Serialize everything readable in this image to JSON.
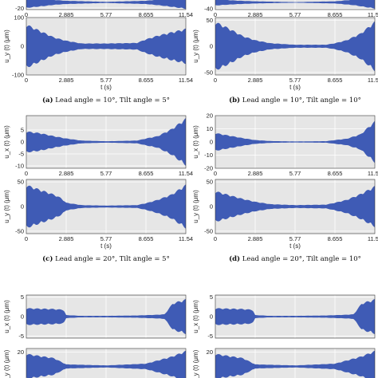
{
  "chart_data": [
    {
      "id": "a-ux",
      "type": "area",
      "ylabel": "u_x (t) (μm)",
      "x_ticks": [
        "0",
        "2.885",
        "5.77",
        "8.655",
        "11.54"
      ],
      "yticks": [
        "-20"
      ],
      "ylim": [
        -25,
        25
      ],
      "xlim": [
        0,
        11.54
      ],
      "envelope": {
        "x": [
          0,
          1.5,
          2.0,
          2.885,
          5.77,
          8.655,
          9.5,
          10.5,
          11.54
        ],
        "amplitude": [
          20,
          12,
          9,
          6,
          2,
          6,
          10,
          16,
          23
        ]
      }
    },
    {
      "id": "b-ux",
      "type": "area",
      "ylabel": "u_x (t) (μm)",
      "x_ticks": [
        "0",
        "2.885",
        "5.77",
        "8.655",
        "11.54"
      ],
      "yticks": [
        "-40"
      ],
      "ylim": [
        -45,
        45
      ],
      "xlim": [
        0,
        11.54
      ],
      "envelope": {
        "x": [
          0,
          1.5,
          2.885,
          5.77,
          8.655,
          10.0,
          11.54
        ],
        "amplitude": [
          20,
          12,
          7,
          2,
          7,
          18,
          40
        ]
      }
    },
    {
      "id": "a-uy",
      "type": "area",
      "xlabel": "t (s)",
      "ylabel": "u_y (t) (μm)",
      "x_ticks": [
        "0",
        "2.885",
        "5.77",
        "8.655",
        "11.54"
      ],
      "yticks": [
        "-100",
        "0",
        "100"
      ],
      "ylim": [
        -100,
        100
      ],
      "xlim": [
        0,
        11.54
      ],
      "envelope": {
        "x": [
          0,
          1.0,
          2.0,
          2.885,
          4.0,
          5.77,
          8.0,
          8.655,
          9.5,
          10.5,
          11.54
        ],
        "amplitude": [
          78,
          55,
          32,
          20,
          10,
          10,
          12,
          25,
          38,
          50,
          62
        ]
      }
    },
    {
      "id": "b-uy",
      "type": "area",
      "xlabel": "t (s)",
      "ylabel": "u_y (t) (μm)",
      "x_ticks": [
        "0",
        "2.885",
        "5.77",
        "8.655",
        "11.54"
      ],
      "yticks": [
        "-50",
        "0",
        "50"
      ],
      "ylim": [
        -55,
        55
      ],
      "xlim": [
        0,
        11.54
      ],
      "envelope": {
        "x": [
          0,
          1.0,
          2.0,
          2.885,
          4.0,
          5.77,
          8.0,
          8.655,
          9.5,
          10.5,
          11.54
        ],
        "amplitude": [
          48,
          35,
          20,
          12,
          6,
          3,
          3,
          6,
          12,
          25,
          48
        ]
      }
    },
    {
      "id": "c-ux",
      "type": "area",
      "ylabel": "u_x (t) (μm)",
      "x_ticks": [
        "0",
        "2.885",
        "5.77",
        "8.655",
        "11.54"
      ],
      "yticks": [
        "-10",
        "-5",
        "0",
        "5"
      ],
      "ylim": [
        -11,
        11
      ],
      "xlim": [
        0,
        11.54
      ],
      "envelope": {
        "x": [
          0,
          1.0,
          2.0,
          2.885,
          4.0,
          5.77,
          8.0,
          8.655,
          9.5,
          10.5,
          11.54
        ],
        "amplitude": [
          4.5,
          3.8,
          2.5,
          1.5,
          0.6,
          0.3,
          0.6,
          1.5,
          2.5,
          5.5,
          10
        ]
      }
    },
    {
      "id": "d-ux",
      "type": "area",
      "ylabel": "u_x (t) (μm)",
      "x_ticks": [
        "0",
        "2.885",
        "5.77",
        "8.655",
        "11.54"
      ],
      "yticks": [
        "-20",
        "-10",
        "0",
        "10",
        "20"
      ],
      "ylim": [
        -20,
        20
      ],
      "xlim": [
        0,
        11.54
      ],
      "envelope": {
        "x": [
          0,
          1.0,
          2.0,
          2.885,
          4.0,
          5.77,
          8.0,
          8.655,
          9.5,
          10.5,
          11.54
        ],
        "amplitude": [
          7,
          5,
          3,
          1.5,
          0.7,
          0.4,
          0.6,
          1.5,
          2.5,
          6,
          16
        ]
      }
    },
    {
      "id": "c-uy",
      "type": "area",
      "xlabel": "t (s)",
      "ylabel": "u_y (t) (μm)",
      "x_ticks": [
        "0",
        "2.885",
        "5.77",
        "8.655",
        "11.54"
      ],
      "yticks": [
        "-50",
        "0",
        "50"
      ],
      "ylim": [
        -55,
        55
      ],
      "xlim": [
        0,
        11.54
      ],
      "envelope": {
        "x": [
          0,
          1.0,
          2.0,
          2.5,
          2.885,
          4.0,
          5.77,
          8.0,
          8.655,
          9.5,
          10.5,
          11.54
        ],
        "amplitude": [
          45,
          35,
          25,
          18,
          8,
          3,
          2,
          3,
          7,
          14,
          25,
          45
        ]
      }
    },
    {
      "id": "d-uy",
      "type": "area",
      "xlabel": "t (s)",
      "ylabel": "u_y (t) (μm)",
      "x_ticks": [
        "0",
        "2.885",
        "5.77",
        "8.655",
        "11.54"
      ],
      "yticks": [
        "-50",
        "0",
        "50"
      ],
      "ylim": [
        -55,
        55
      ],
      "xlim": [
        0,
        11.54
      ],
      "envelope": {
        "x": [
          0,
          1.0,
          2.0,
          2.885,
          4.0,
          5.77,
          8.0,
          8.655,
          9.5,
          10.5,
          11.54
        ],
        "amplitude": [
          32,
          24,
          16,
          10,
          5,
          3,
          4,
          8,
          14,
          26,
          42
        ]
      }
    },
    {
      "id": "e-ux",
      "type": "area",
      "ylabel": "u_x (t) (μm)",
      "x_ticks": [],
      "yticks": [
        "-5",
        "0",
        "5"
      ],
      "ylim": [
        -5.5,
        5.5
      ],
      "xlim": [
        0,
        11.54
      ],
      "envelope": {
        "x": [
          0,
          2.0,
          2.7,
          2.885,
          4.0,
          5.77,
          8.0,
          9.5,
          10.0,
          10.6,
          11.54
        ],
        "amplitude": [
          2.2,
          2.0,
          1.8,
          0.4,
          0.2,
          0.2,
          0.3,
          0.5,
          0.6,
          3.5,
          4.5
        ]
      }
    },
    {
      "id": "f-ux",
      "type": "area",
      "ylabel": "u_x (t) (μm)",
      "x_ticks": [],
      "yticks": [
        "-5",
        "0",
        "5"
      ],
      "ylim": [
        -5.5,
        5.5
      ],
      "xlim": [
        0,
        11.54
      ],
      "envelope": {
        "x": [
          0,
          2.0,
          2.7,
          2.885,
          4.0,
          5.77,
          8.0,
          9.5,
          10.0,
          10.6,
          11.54
        ],
        "amplitude": [
          2.2,
          2.0,
          1.8,
          0.4,
          0.2,
          0.2,
          0.3,
          0.5,
          0.6,
          3.5,
          4.5
        ]
      }
    },
    {
      "id": "e-uy",
      "type": "area",
      "ylabel": "u_y (t) (μm)",
      "x_ticks": [],
      "yticks": [
        "20"
      ],
      "ylim": [
        -25,
        25
      ],
      "xlim": [
        0,
        11.54
      ],
      "envelope": {
        "x": [
          0,
          2.0,
          2.885,
          5.77,
          8.655,
          10.5,
          11.54
        ],
        "amplitude": [
          18,
          12,
          3,
          1.5,
          4,
          14,
          22
        ]
      }
    },
    {
      "id": "f-uy",
      "type": "area",
      "ylabel": "u_y (t) (μm)",
      "x_ticks": [],
      "yticks": [
        "20"
      ],
      "ylim": [
        -25,
        25
      ],
      "xlim": [
        0,
        11.54
      ],
      "envelope": {
        "x": [
          0,
          2.0,
          2.885,
          5.77,
          8.655,
          10.5,
          11.54
        ],
        "amplitude": [
          18,
          12,
          3,
          1.5,
          4,
          14,
          22
        ]
      }
    }
  ],
  "captions": [
    {
      "tag": "(a)",
      "text": " Lead angle = 10°, Tilt angle = 5°"
    },
    {
      "tag": "(b)",
      "text": " Lead angle = 10°, Tilt angle = 10°"
    },
    {
      "tag": "(c)",
      "text": " Lead angle = 20°, Tilt angle = 5°"
    },
    {
      "tag": "(d)",
      "text": " Lead angle = 20°, Tilt angle = 10°"
    }
  ],
  "style": {
    "signal_color": "#3f5bb5",
    "plot_bg": "#e6e6e6",
    "grid_color": "#ffffff",
    "axis_color": "#333333"
  }
}
